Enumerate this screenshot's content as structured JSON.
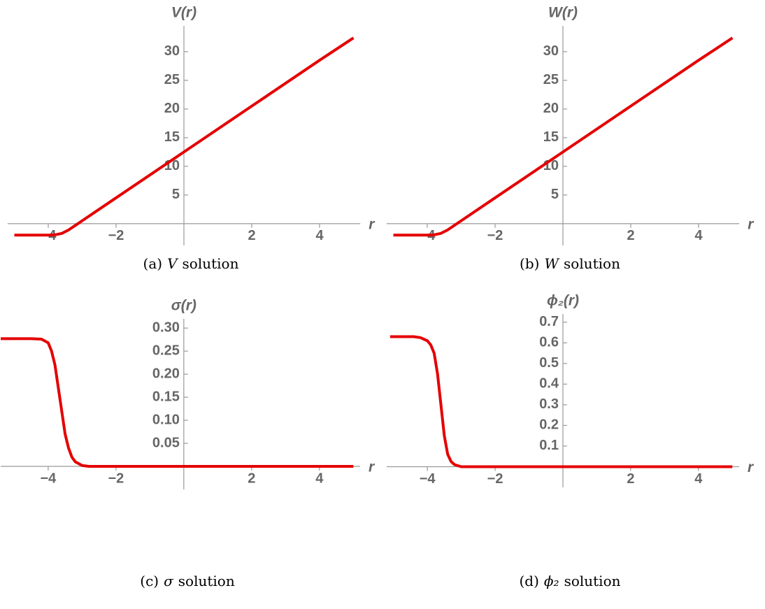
{
  "chart_data": [
    {
      "type": "line",
      "ylabel": "V(r)",
      "xlabel": "r",
      "caption": {
        "prefix": "(a)",
        "symbol": "V",
        "text": "solution"
      },
      "x": [
        -5,
        -4.5,
        -4,
        -3.8,
        -3.6,
        -3.4,
        -3.2,
        -3,
        -2,
        0,
        2,
        4,
        5
      ],
      "series": [
        {
          "name": "V",
          "color": "#e50000",
          "values": [
            -2,
            -2,
            -2,
            -1.95,
            -1.7,
            -1.1,
            -0.3,
            0.5,
            4.5,
            12.5,
            20.5,
            28.5,
            32.4
          ]
        }
      ],
      "xlim": [
        -5.2,
        5.2
      ],
      "ylim": [
        -3.8,
        34.5
      ],
      "xticks": [
        {
          "value": -4,
          "label": "−4"
        },
        {
          "value": -2,
          "label": "−2"
        },
        2,
        4
      ],
      "yticks": [
        5,
        10,
        15,
        20,
        25,
        30
      ]
    },
    {
      "type": "line",
      "ylabel": "W(r)",
      "xlabel": "r",
      "caption": {
        "prefix": "(b)",
        "symbol": "W",
        "text": "solution"
      },
      "x": [
        -5,
        -4.5,
        -4,
        -3.8,
        -3.6,
        -3.4,
        -3.2,
        -3,
        -2,
        0,
        2,
        4,
        5
      ],
      "series": [
        {
          "name": "W",
          "color": "#e50000",
          "values": [
            -2,
            -2,
            -2,
            -1.95,
            -1.7,
            -1.1,
            -0.3,
            0.5,
            4.5,
            12.5,
            20.5,
            28.5,
            32.4
          ]
        }
      ],
      "xlim": [
        -5.2,
        5.2
      ],
      "ylim": [
        -3.8,
        34.5
      ],
      "xticks": [
        {
          "value": -4,
          "label": "−4"
        },
        {
          "value": -2,
          "label": "−2"
        },
        2,
        4
      ],
      "yticks": [
        5,
        10,
        15,
        20,
        25,
        30
      ]
    },
    {
      "type": "line",
      "ylabel": "σ(r)",
      "xlabel": "r",
      "caption": {
        "prefix": "(c)",
        "symbol": "σ",
        "text": "solution"
      },
      "x": [
        -5.4,
        -4.5,
        -4.2,
        -4,
        -3.9,
        -3.8,
        -3.7,
        -3.6,
        -3.5,
        -3.4,
        -3.3,
        -3.2,
        -3,
        -2.8,
        5
      ],
      "series": [
        {
          "name": "σ",
          "color": "#e50000",
          "values": [
            0.277,
            0.277,
            0.276,
            0.268,
            0.25,
            0.22,
            0.17,
            0.12,
            0.07,
            0.04,
            0.02,
            0.01,
            0.002,
            0,
            0
          ]
        }
      ],
      "xlim": [
        -5.4,
        5.2
      ],
      "ylim": [
        -0.05,
        0.32
      ],
      "xticks": [
        {
          "value": -4,
          "label": "−4"
        },
        {
          "value": -2,
          "label": "−2"
        },
        2,
        4
      ],
      "yticks": [
        0.05,
        {
          "value": 0.1,
          "label": "0.10"
        },
        0.15,
        {
          "value": 0.2,
          "label": "0.20"
        },
        0.25,
        {
          "value": 0.3,
          "label": "0.30"
        }
      ]
    },
    {
      "type": "line",
      "ylabel": "ϕ₂(r)",
      "xlabel": "r",
      "caption": {
        "prefix": "(d)",
        "symbol": "ϕ₂",
        "text": "solution"
      },
      "x": [
        -5.1,
        -4.4,
        -4.2,
        -4,
        -3.9,
        -3.8,
        -3.7,
        -3.6,
        -3.5,
        -3.4,
        -3.3,
        -3.2,
        -3,
        5
      ],
      "series": [
        {
          "name": "ϕ₂",
          "color": "#e50000",
          "values": [
            0.63,
            0.63,
            0.625,
            0.61,
            0.59,
            0.55,
            0.45,
            0.3,
            0.15,
            0.06,
            0.025,
            0.01,
            0,
            0
          ]
        }
      ],
      "xlim": [
        -5.2,
        5.2
      ],
      "ylim": [
        -0.1,
        0.74
      ],
      "xticks": [
        {
          "value": -4,
          "label": "−4"
        },
        {
          "value": -2,
          "label": "−2"
        },
        2,
        4
      ],
      "yticks": [
        0.1,
        0.2,
        0.3,
        0.4,
        0.5,
        0.6,
        0.7
      ]
    }
  ]
}
